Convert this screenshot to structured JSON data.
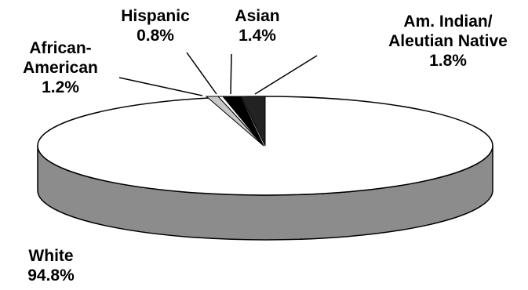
{
  "chart_data": {
    "type": "pie",
    "style": "3d",
    "title": "",
    "slices": [
      {
        "label_lines": [
          "White"
        ],
        "value": 94.8,
        "value_text": "94.8%",
        "color": "#ffffff"
      },
      {
        "label_lines": [
          "African-",
          "American"
        ],
        "value": 1.2,
        "value_text": "1.2%",
        "color": "#c8c8c8"
      },
      {
        "label_lines": [
          "Hispanic"
        ],
        "value": 0.8,
        "value_text": "0.8%",
        "color": "#ffffff"
      },
      {
        "label_lines": [
          "Asian"
        ],
        "value": 1.4,
        "value_text": "1.4%",
        "color": "#000000"
      },
      {
        "label_lines": [
          "Am. Indian/",
          "Aleutian Native"
        ],
        "value": 1.8,
        "value_text": "1.8%",
        "color": "#222222"
      }
    ],
    "side_color": "#8c8c8c"
  }
}
